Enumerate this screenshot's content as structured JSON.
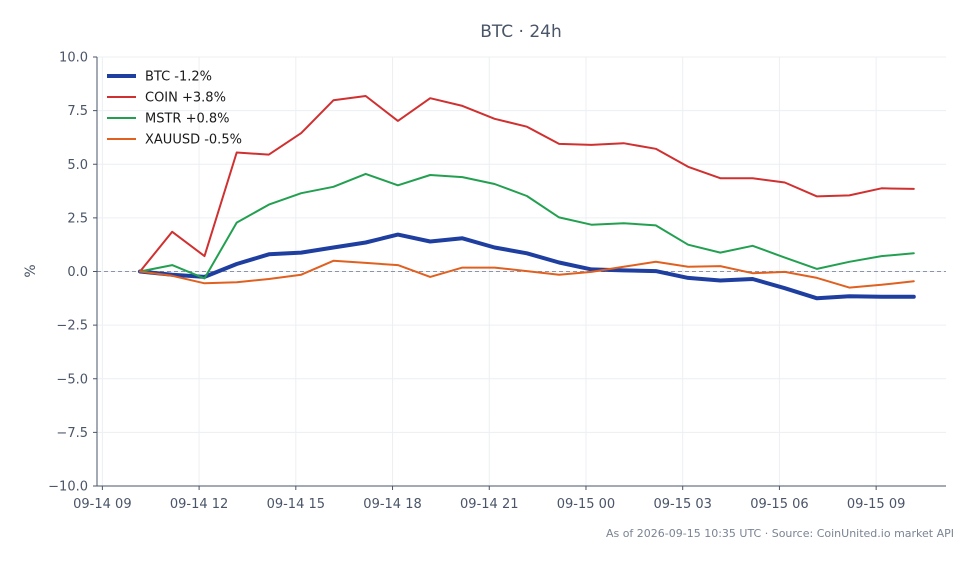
{
  "chart_data": {
    "type": "line",
    "title": "BTC · 24h",
    "xlabel": "",
    "ylabel": "%",
    "ylim": [
      -10,
      10
    ],
    "xlim": [
      "2026-09-14T08:50",
      "2026-09-15T11:10"
    ],
    "yticks": [
      10.0,
      7.5,
      5.0,
      2.5,
      0.0,
      -2.5,
      -5.0,
      -7.5,
      -10.0
    ],
    "ytick_labels": [
      "10.0",
      "7.5",
      "5.0",
      "2.5",
      "0.0",
      "−2.5",
      "−5.0",
      "−7.5",
      "−10.0"
    ],
    "xticks": [
      "2026-09-14T09:00",
      "2026-09-14T12:00",
      "2026-09-14T15:00",
      "2026-09-14T18:00",
      "2026-09-14T21:00",
      "2026-09-15T00:00",
      "2026-09-15T03:00",
      "2026-09-15T06:00",
      "2026-09-15T09:00"
    ],
    "xtick_labels": [
      "09-14 09",
      "09-14 12",
      "09-14 15",
      "09-14 18",
      "09-14 21",
      "09-15 00",
      "09-15 03",
      "09-15 06",
      "09-15 09"
    ],
    "grid": true,
    "legend_position": "top-left",
    "reference_line": {
      "y": 0,
      "style": "dashed",
      "color": "#8a94ad"
    },
    "x": [
      "2026-09-14T10:10",
      "2026-09-14T11:10",
      "2026-09-14T12:10",
      "2026-09-14T13:10",
      "2026-09-14T14:10",
      "2026-09-14T15:10",
      "2026-09-14T16:10",
      "2026-09-14T17:10",
      "2026-09-14T18:10",
      "2026-09-14T19:10",
      "2026-09-14T20:10",
      "2026-09-14T21:10",
      "2026-09-14T22:10",
      "2026-09-14T23:10",
      "2026-09-15T00:10",
      "2026-09-15T01:10",
      "2026-09-15T02:10",
      "2026-09-15T03:10",
      "2026-09-15T04:10",
      "2026-09-15T05:10",
      "2026-09-15T06:10",
      "2026-09-15T07:10",
      "2026-09-15T08:10",
      "2026-09-15T09:10",
      "2026-09-15T10:10"
    ],
    "series": [
      {
        "name": "BTC -1.2%",
        "color": "#1f3fa0",
        "line_width": 4,
        "values": [
          0.0,
          -0.15,
          -0.25,
          0.35,
          0.8,
          0.88,
          1.12,
          1.35,
          1.72,
          1.4,
          1.55,
          1.12,
          0.85,
          0.42,
          0.1,
          0.05,
          0.02,
          -0.3,
          -0.42,
          -0.35,
          -0.78,
          -1.25,
          -1.15,
          -1.18,
          -1.18
        ]
      },
      {
        "name": "COIN +3.8%",
        "color": "#d03030",
        "line_width": 2,
        "values": [
          0.0,
          1.85,
          0.72,
          5.55,
          5.45,
          6.45,
          7.98,
          8.18,
          7.02,
          8.08,
          7.72,
          7.12,
          6.75,
          5.95,
          5.9,
          5.98,
          5.72,
          4.88,
          4.35,
          4.35,
          4.15,
          3.5,
          3.55,
          3.88,
          3.85
        ]
      },
      {
        "name": "MSTR +0.8%",
        "color": "#22a050",
        "line_width": 2,
        "values": [
          0.0,
          0.3,
          -0.32,
          2.28,
          3.12,
          3.65,
          3.95,
          4.55,
          4.02,
          4.5,
          4.4,
          4.08,
          3.52,
          2.52,
          2.18,
          2.25,
          2.15,
          1.25,
          0.88,
          1.2,
          0.65,
          0.12,
          0.45,
          0.72,
          0.85
        ]
      },
      {
        "name": "XAUUSD -0.5%",
        "color": "#e06020",
        "line_width": 2,
        "values": [
          0.0,
          -0.2,
          -0.55,
          -0.5,
          -0.35,
          -0.15,
          0.5,
          0.4,
          0.3,
          -0.25,
          0.18,
          0.18,
          0.02,
          -0.15,
          -0.02,
          0.22,
          0.45,
          0.22,
          0.25,
          -0.08,
          -0.02,
          -0.3,
          -0.75,
          -0.62,
          -0.45
        ]
      }
    ]
  },
  "footer": {
    "note": "As of 2026-09-15 10:35 UTC · Source: CoinUnited.io market API"
  }
}
